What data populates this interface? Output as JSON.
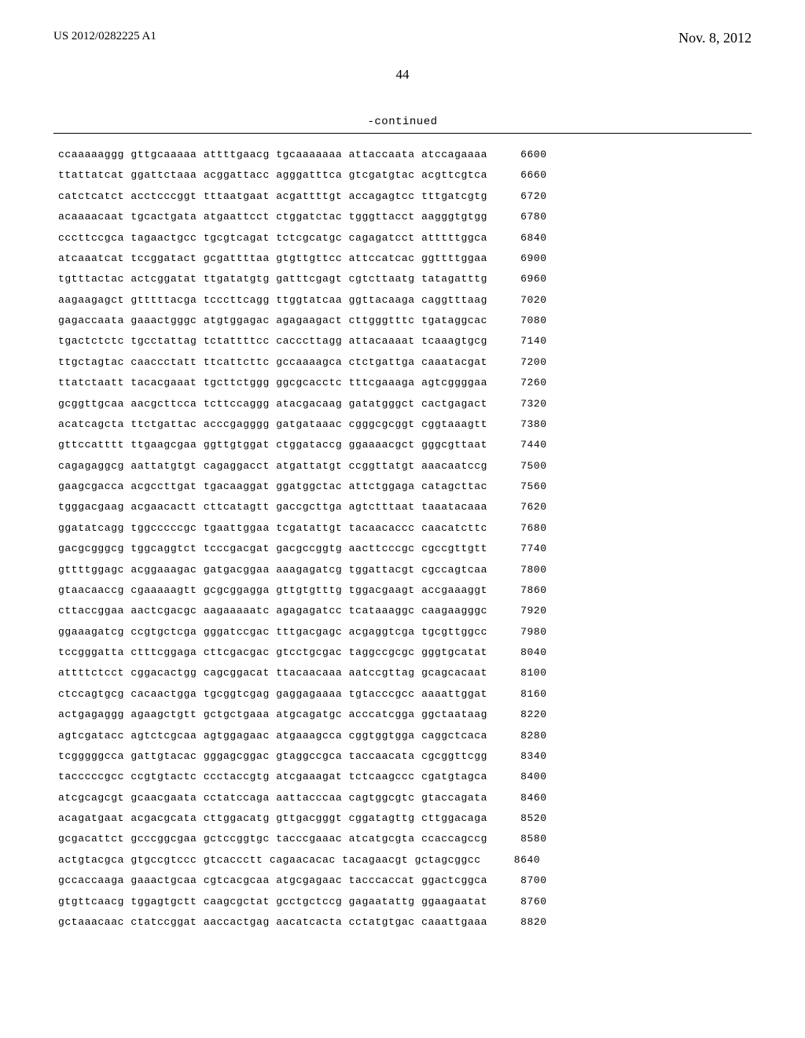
{
  "header": {
    "publication_number": "US 2012/0282225 A1",
    "publication_date": "Nov. 8, 2012"
  },
  "page_number": "44",
  "continued_label": "-continued",
  "sequence": {
    "font": "Courier New",
    "font_size_pt": 10,
    "rows": [
      {
        "groups": [
          "ccaaaaaggg",
          "gttgcaaaaa",
          "attttgaacg",
          "tgcaaaaaaa",
          "attaccaata",
          "atccagaaaa"
        ],
        "pos": "6600"
      },
      {
        "groups": [
          "ttattatcat",
          "ggattctaaa",
          "acggattacc",
          "agggatttca",
          "gtcgatgtac",
          "acgttcgtca"
        ],
        "pos": "6660"
      },
      {
        "groups": [
          "catctcatct",
          "acctcccggt",
          "tttaatgaat",
          "acgattttgt",
          "accagagtcc",
          "tttgatcgtg"
        ],
        "pos": "6720"
      },
      {
        "groups": [
          "acaaaacaat",
          "tgcactgata",
          "atgaattcct",
          "ctggatctac",
          "tgggttacct",
          "aagggtgtgg"
        ],
        "pos": "6780"
      },
      {
        "groups": [
          "cccttccgca",
          "tagaactgcc",
          "tgcgtcagat",
          "tctcgcatgc",
          "cagagatcct",
          "atttttggca"
        ],
        "pos": "6840"
      },
      {
        "groups": [
          "atcaaatcat",
          "tccggatact",
          "gcgattttaa",
          "gtgttgttcc",
          "attccatcac",
          "ggttttggaa"
        ],
        "pos": "6900"
      },
      {
        "groups": [
          "tgtttactac",
          "actcggatat",
          "ttgatatgtg",
          "gatttcgagt",
          "cgtcttaatg",
          "tatagatttg"
        ],
        "pos": "6960"
      },
      {
        "groups": [
          "aagaagagct",
          "gtttttacga",
          "tcccttcagg",
          "ttggtatcaa",
          "ggttacaaga",
          "caggtttaag"
        ],
        "pos": "7020"
      },
      {
        "groups": [
          "gagaccaata",
          "gaaactgggc",
          "atgtggagac",
          "agagaagact",
          "cttgggtttc",
          "tgataggcac"
        ],
        "pos": "7080"
      },
      {
        "groups": [
          "tgactctctc",
          "tgcctattag",
          "tctattttcc",
          "cacccttagg",
          "attacaaaat",
          "tcaaagtgcg"
        ],
        "pos": "7140"
      },
      {
        "groups": [
          "ttgctagtac",
          "caaccctatt",
          "ttcattcttc",
          "gccaaaagca",
          "ctctgattga",
          "caaatacgat"
        ],
        "pos": "7200"
      },
      {
        "groups": [
          "ttatctaatt",
          "tacacgaaat",
          "tgcttctggg",
          "ggcgcacctc",
          "tttcgaaaga",
          "agtcggggaa"
        ],
        "pos": "7260"
      },
      {
        "groups": [
          "gcggttgcaa",
          "aacgcttcca",
          "tcttccaggg",
          "atacgacaag",
          "gatatgggct",
          "cactgagact"
        ],
        "pos": "7320"
      },
      {
        "groups": [
          "acatcagcta",
          "ttctgattac",
          "acccgagggg",
          "gatgataaac",
          "cgggcgcggt",
          "cggtaaagtt"
        ],
        "pos": "7380"
      },
      {
        "groups": [
          "gttccatttt",
          "ttgaagcgaa",
          "ggttgtggat",
          "ctggataccg",
          "ggaaaacgct",
          "gggcgttaat"
        ],
        "pos": "7440"
      },
      {
        "groups": [
          "cagagaggcg",
          "aattatgtgt",
          "cagaggacct",
          "atgattatgt",
          "ccggttatgt",
          "aaacaatccg"
        ],
        "pos": "7500"
      },
      {
        "groups": [
          "gaagcgacca",
          "acgccttgat",
          "tgacaaggat",
          "ggatggctac",
          "attctggaga",
          "catagcttac"
        ],
        "pos": "7560"
      },
      {
        "groups": [
          "tgggacgaag",
          "acgaacactt",
          "cttcatagtt",
          "gaccgcttga",
          "agtctttaat",
          "taaatacaaa"
        ],
        "pos": "7620"
      },
      {
        "groups": [
          "ggatatcagg",
          "tggcccccgc",
          "tgaattggaa",
          "tcgatattgt",
          "tacaacaccc",
          "caacatcttc"
        ],
        "pos": "7680"
      },
      {
        "groups": [
          "gacgcgggcg",
          "tggcaggtct",
          "tcccgacgat",
          "gacgccggtg",
          "aacttcccgc",
          "cgccgttgtt"
        ],
        "pos": "7740"
      },
      {
        "groups": [
          "gttttggagc",
          "acggaaagac",
          "gatgacggaa",
          "aaagagatcg",
          "tggattacgt",
          "cgccagtcaa"
        ],
        "pos": "7800"
      },
      {
        "groups": [
          "gtaacaaccg",
          "cgaaaaagtt",
          "gcgcggagga",
          "gttgtgtttg",
          "tggacgaagt",
          "accgaaaggt"
        ],
        "pos": "7860"
      },
      {
        "groups": [
          "cttaccggaa",
          "aactcgacgc",
          "aagaaaaatc",
          "agagagatcc",
          "tcataaaggc",
          "caagaagggc"
        ],
        "pos": "7920"
      },
      {
        "groups": [
          "ggaaagatcg",
          "ccgtgctcga",
          "gggatccgac",
          "tttgacgagc",
          "acgaggtcga",
          "tgcgttggcc"
        ],
        "pos": "7980"
      },
      {
        "groups": [
          "tccgggatta",
          "ctttcggaga",
          "cttcgacgac",
          "gtcctgcgac",
          "taggccgcgc",
          "gggtgcatat"
        ],
        "pos": "8040"
      },
      {
        "groups": [
          "attttctcct",
          "cggacactgg",
          "cagcggacat",
          "ttacaacaaa",
          "aatccgttag",
          "gcagcacaat"
        ],
        "pos": "8100"
      },
      {
        "groups": [
          "ctccagtgcg",
          "cacaactgga",
          "tgcggtcgag",
          "gaggagaaaa",
          "tgtacccgcc",
          "aaaattggat"
        ],
        "pos": "8160"
      },
      {
        "groups": [
          "actgagaggg",
          "agaagctgtt",
          "gctgctgaaa",
          "atgcagatgc",
          "acccatcgga",
          "ggctaataag"
        ],
        "pos": "8220"
      },
      {
        "groups": [
          "agtcgatacc",
          "agtctcgcaa",
          "agtggagaac",
          "atgaaagcca",
          "cggtggtgga",
          "caggctcaca"
        ],
        "pos": "8280"
      },
      {
        "groups": [
          "tcgggggcca",
          "gattgtacac",
          "gggagcggac",
          "gtaggccgca",
          "taccaacata",
          "cgcggttcgg"
        ],
        "pos": "8340"
      },
      {
        "groups": [
          "tacccccgcc",
          "ccgtgtactc",
          "ccctaccgtg",
          "atcgaaagat",
          "tctcaagccc",
          "cgatgtagca"
        ],
        "pos": "8400"
      },
      {
        "groups": [
          "atcgcagcgt",
          "gcaacgaata",
          "cctatccaga",
          "aattacccaa",
          "cagtggcgtc",
          "gtaccagata"
        ],
        "pos": "8460"
      },
      {
        "groups": [
          "acagatgaat",
          "acgacgcata",
          "cttggacatg",
          "gttgacgggt",
          "cggatagttg",
          "cttggacaga"
        ],
        "pos": "8520"
      },
      {
        "groups": [
          "gcgacattct",
          "gcccggcgaa",
          "gctccggtgc",
          "tacccgaaac",
          "atcatgcgta",
          "ccaccagccg"
        ],
        "pos": "8580"
      },
      {
        "groups": [
          "actgtacgca",
          "gtgccgtccc",
          "gtcaccctt",
          "cagaacacac",
          "tacagaacgt",
          "gctagcggcc"
        ],
        "pos": "8640"
      },
      {
        "groups": [
          "gccaccaaga",
          "gaaactgcaa",
          "cgtcacgcaa",
          "atgcgagaac",
          "tacccaccat",
          "ggactcggca"
        ],
        "pos": "8700"
      },
      {
        "groups": [
          "gtgttcaacg",
          "tggagtgctt",
          "caagcgctat",
          "gcctgctccg",
          "gagaatattg",
          "ggaagaatat"
        ],
        "pos": "8760"
      },
      {
        "groups": [
          "gctaaacaac",
          "ctatccggat",
          "aaccactgag",
          "aacatcacta",
          "cctatgtgac",
          "caaattgaaa"
        ],
        "pos": "8820"
      }
    ]
  }
}
